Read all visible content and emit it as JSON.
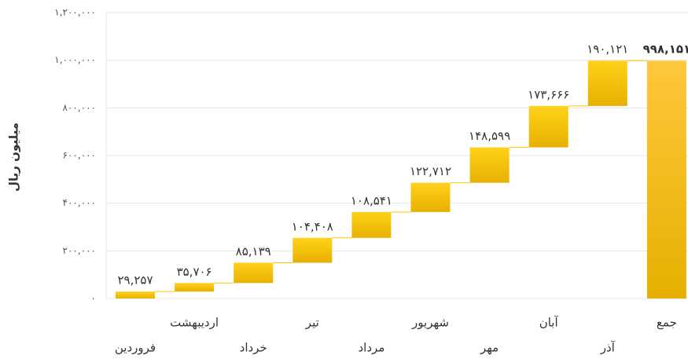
{
  "chart_data": {
    "type": "waterfall",
    "y_label": "میلیون ریال",
    "categories": [
      "فروردین",
      "اردیبهشت",
      "خرداد",
      "تیر",
      "مرداد",
      "شهریور",
      "مهر",
      "آبان",
      "آذر"
    ],
    "values": [
      29257,
      35706,
      85139,
      104408,
      108541,
      122712,
      148599,
      173666,
      190121
    ],
    "value_labels": [
      "۲۹,۲۵۷",
      "۳۵,۷۰۶",
      "۸۵,۱۳۹",
      "۱۰۴,۴۰۸",
      "۱۰۸,۵۴۱",
      "۱۲۲,۷۱۲",
      "۱۴۸,۵۹۹",
      "۱۷۳,۶۶۶",
      "۱۹۰,۱۲۱"
    ],
    "total": {
      "category": "جمع",
      "value": 998151,
      "value_label": "۹۹۸,۱۵۱"
    },
    "color": "#ffc400",
    "total_color": "#ffc53a",
    "ylim": [
      0,
      1200000
    ],
    "yticks": [
      {
        "value": 0,
        "label": "۰"
      },
      {
        "value": 200000,
        "label": "۲۰۰,۰۰۰"
      },
      {
        "value": 400000,
        "label": "۴۰۰,۰۰۰"
      },
      {
        "value": 600000,
        "label": "۶۰۰,۰۰۰"
      },
      {
        "value": 800000,
        "label": "۸۰۰,۰۰۰"
      },
      {
        "value": 1000000,
        "label": "۱,۰۰۰,۰۰۰"
      },
      {
        "value": 1200000,
        "label": "۱,۲۰۰,۰۰۰"
      }
    ],
    "grid": true
  }
}
